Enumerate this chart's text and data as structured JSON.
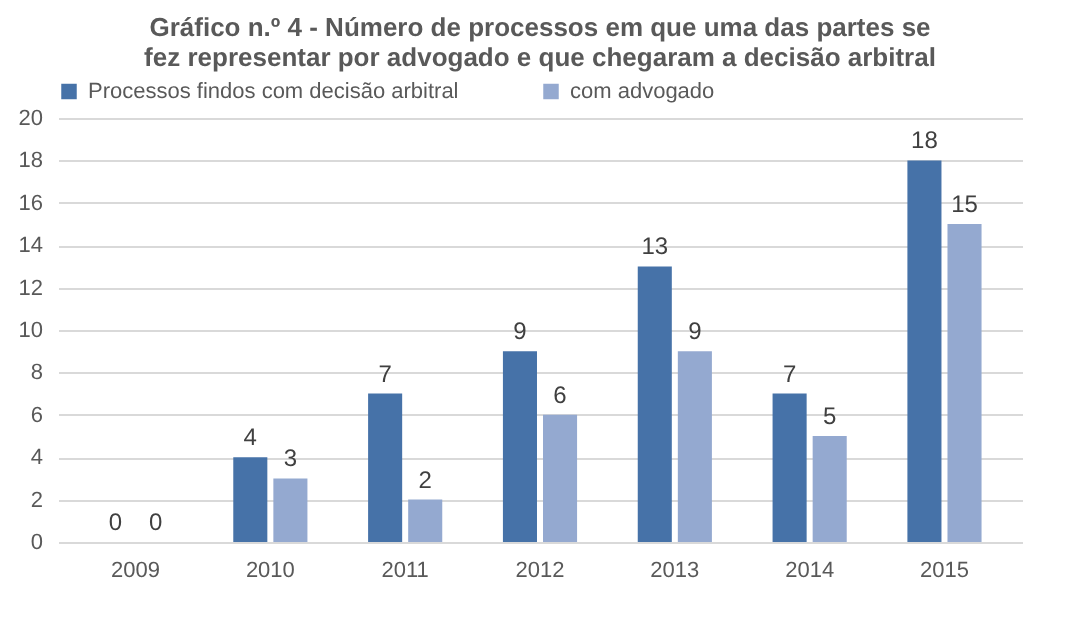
{
  "chart_data": {
    "type": "bar",
    "title": "Gráfico n.º 4 - Número de processos em que uma das partes se fez representar por advogado e que chegaram a decisão arbitral",
    "categories": [
      "2009",
      "2010",
      "2011",
      "2012",
      "2013",
      "2014",
      "2015"
    ],
    "series": [
      {
        "name": "Processos findos com decisão arbitral",
        "color": "#4672a8",
        "values": [
          0,
          4,
          7,
          9,
          13,
          7,
          18
        ]
      },
      {
        "name": "com advogado",
        "color": "#94a9d0",
        "values": [
          0,
          3,
          2,
          6,
          9,
          5,
          15
        ]
      }
    ],
    "ylim": [
      0,
      20
    ],
    "yticks": [
      0,
      2,
      4,
      6,
      8,
      10,
      12,
      14,
      16,
      18,
      20
    ],
    "grid": "y",
    "legend": "top",
    "data_labels": true
  }
}
